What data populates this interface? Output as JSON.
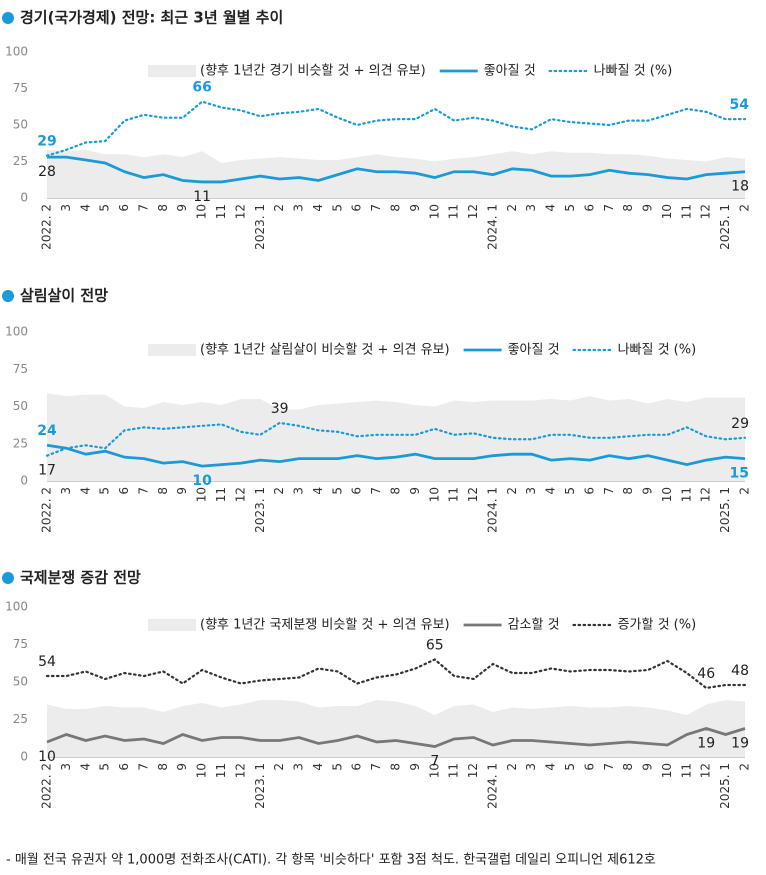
{
  "chart_data": [
    {
      "type": "line",
      "title": "경기(국가경제) 전망:  최근 3년 월별 추이",
      "categories": [
        "2022. 2",
        "3",
        "4",
        "5",
        "6",
        "7",
        "8",
        "9",
        "10",
        "11",
        "12",
        "2023. 1",
        "2",
        "3",
        "4",
        "5",
        "6",
        "7",
        "8",
        "9",
        "10",
        "11",
        "12",
        "2024. 1",
        "2",
        "3",
        "4",
        "5",
        "6",
        "7",
        "8",
        "9",
        "10",
        "11",
        "12",
        "2025. 1",
        "2"
      ],
      "ylim": [
        0,
        100
      ],
      "yticks": [
        0,
        25,
        50,
        75,
        100
      ],
      "series": [
        {
          "name": "(향후 1년간 경기 비슷할 것 + 의견 유보)",
          "color": "#ececec",
          "style": "area",
          "values": [
            33,
            32,
            33,
            30,
            30,
            28,
            30,
            28,
            32,
            24,
            26,
            27,
            28,
            27,
            26,
            26,
            28,
            30,
            28,
            27,
            25,
            27,
            28,
            30,
            32,
            30,
            32,
            31,
            31,
            30,
            30,
            29,
            27,
            26,
            25,
            28,
            27
          ]
        },
        {
          "name": "좋아질 것",
          "color": "#1a9ad6",
          "style": "solid",
          "label_color": "#222",
          "values": [
            28,
            28,
            26,
            24,
            18,
            14,
            16,
            12,
            11,
            11,
            13,
            15,
            13,
            14,
            12,
            16,
            20,
            18,
            18,
            17,
            14,
            18,
            18,
            16,
            20,
            19,
            15,
            15,
            16,
            19,
            17,
            16,
            14,
            13,
            16,
            17,
            18
          ],
          "value_labels": [
            "28",
            null,
            null,
            null,
            null,
            null,
            null,
            null,
            "11",
            null,
            null,
            null,
            null,
            null,
            null,
            null,
            null,
            null,
            null,
            null,
            null,
            null,
            null,
            null,
            null,
            null,
            null,
            null,
            null,
            null,
            null,
            null,
            null,
            null,
            null,
            null,
            "18"
          ]
        },
        {
          "name": "나빠질 것 (%)",
          "color": "#1a9ad6",
          "style": "dotted",
          "label_color": "#1a9ad6",
          "values": [
            29,
            33,
            38,
            39,
            53,
            57,
            55,
            55,
            66,
            62,
            60,
            56,
            58,
            59,
            61,
            55,
            50,
            53,
            54,
            54,
            61,
            53,
            55,
            53,
            49,
            47,
            54,
            52,
            51,
            50,
            53,
            53,
            57,
            61,
            59,
            54,
            54
          ],
          "value_labels": [
            "29",
            null,
            null,
            null,
            null,
            null,
            null,
            null,
            "66",
            null,
            null,
            null,
            null,
            null,
            null,
            null,
            null,
            null,
            null,
            null,
            null,
            null,
            null,
            null,
            null,
            null,
            null,
            null,
            null,
            null,
            null,
            null,
            null,
            null,
            null,
            null,
            "54"
          ]
        }
      ]
    },
    {
      "type": "line",
      "title": "살림살이 전망",
      "categories": [
        "2022. 2",
        "3",
        "4",
        "5",
        "6",
        "7",
        "8",
        "9",
        "10",
        "11",
        "12",
        "2023. 1",
        "2",
        "3",
        "4",
        "5",
        "6",
        "7",
        "8",
        "9",
        "10",
        "11",
        "12",
        "2024. 1",
        "2",
        "3",
        "4",
        "5",
        "6",
        "7",
        "8",
        "9",
        "10",
        "11",
        "12",
        "2025. 1",
        "2"
      ],
      "ylim": [
        0,
        100
      ],
      "yticks": [
        0,
        25,
        50,
        75,
        100
      ],
      "series": [
        {
          "name": "(향후 1년간 살림살이 비슷할 것 + 의견 유보)",
          "color": "#ececec",
          "style": "area",
          "values": [
            59,
            57,
            58,
            58,
            50,
            49,
            53,
            51,
            53,
            51,
            55,
            55,
            48,
            48,
            51,
            52,
            53,
            54,
            53,
            51,
            50,
            54,
            53,
            54,
            54,
            54,
            55,
            54,
            57,
            54,
            55,
            52,
            55,
            53,
            56,
            56,
            56
          ]
        },
        {
          "name": "좋아질 것",
          "color": "#1a9ad6",
          "style": "solid",
          "label_color": "#1a9ad6",
          "values": [
            24,
            22,
            18,
            20,
            16,
            15,
            12,
            13,
            10,
            11,
            12,
            14,
            13,
            15,
            15,
            15,
            17,
            15,
            16,
            18,
            15,
            15,
            15,
            17,
            18,
            18,
            14,
            15,
            14,
            17,
            15,
            17,
            14,
            11,
            14,
            16,
            15
          ],
          "value_labels": [
            "24",
            null,
            null,
            null,
            null,
            null,
            null,
            null,
            "10",
            null,
            null,
            null,
            null,
            null,
            null,
            null,
            null,
            null,
            null,
            null,
            null,
            null,
            null,
            null,
            null,
            null,
            null,
            null,
            null,
            null,
            null,
            null,
            null,
            null,
            null,
            null,
            "15"
          ]
        },
        {
          "name": "나빠질 것 (%)",
          "color": "#1a9ad6",
          "style": "dotted",
          "label_color": "#222",
          "values": [
            17,
            22,
            24,
            22,
            34,
            36,
            35,
            36,
            37,
            38,
            33,
            31,
            39,
            37,
            34,
            33,
            30,
            31,
            31,
            31,
            35,
            31,
            32,
            29,
            28,
            28,
            31,
            31,
            29,
            29,
            30,
            31,
            31,
            36,
            30,
            28,
            29
          ],
          "value_labels": [
            "17",
            null,
            null,
            null,
            null,
            null,
            null,
            null,
            null,
            null,
            null,
            null,
            "39",
            null,
            null,
            null,
            null,
            null,
            null,
            null,
            null,
            null,
            null,
            null,
            null,
            null,
            null,
            null,
            null,
            null,
            null,
            null,
            null,
            null,
            null,
            null,
            "29"
          ]
        }
      ]
    },
    {
      "type": "line",
      "title": "국제분쟁 증감 전망",
      "categories": [
        "2022. 2",
        "3",
        "4",
        "5",
        "6",
        "7",
        "8",
        "9",
        "10",
        "11",
        "12",
        "2023. 1",
        "2",
        "3",
        "4",
        "5",
        "6",
        "7",
        "8",
        "9",
        "10",
        "11",
        "12",
        "2024. 1",
        "2",
        "3",
        "4",
        "5",
        "6",
        "7",
        "8",
        "9",
        "10",
        "11",
        "12",
        "2025. 1",
        "2"
      ],
      "ylim": [
        0,
        100
      ],
      "yticks": [
        0,
        25,
        50,
        75,
        100
      ],
      "series": [
        {
          "name": "(향후 1년간 국제분쟁 비슷할 것 + 의견 유보)",
          "color": "#ececec",
          "style": "area",
          "values": [
            35,
            32,
            32,
            34,
            33,
            33,
            30,
            34,
            36,
            33,
            35,
            38,
            38,
            37,
            33,
            34,
            34,
            38,
            37,
            34,
            28,
            34,
            35,
            30,
            33,
            32,
            33,
            34,
            33,
            33,
            34,
            33,
            31,
            28,
            35,
            38,
            37
          ]
        },
        {
          "name": "감소할 것",
          "color": "#777777",
          "style": "solid",
          "label_color": "#222",
          "values": [
            10,
            15,
            11,
            14,
            11,
            12,
            9,
            15,
            11,
            13,
            13,
            11,
            11,
            13,
            9,
            11,
            14,
            10,
            11,
            9,
            7,
            12,
            13,
            8,
            11,
            11,
            10,
            9,
            8,
            9,
            10,
            9,
            8,
            15,
            19,
            15,
            19
          ],
          "value_labels": [
            "10",
            null,
            null,
            null,
            null,
            null,
            null,
            null,
            null,
            null,
            null,
            null,
            null,
            null,
            null,
            null,
            null,
            null,
            null,
            null,
            "7",
            null,
            null,
            null,
            null,
            null,
            null,
            null,
            null,
            null,
            null,
            null,
            null,
            null,
            "19",
            null,
            "19"
          ]
        },
        {
          "name": "증가할 것 (%)",
          "color": "#333333",
          "style": "dotted",
          "label_color": "#222",
          "values": [
            54,
            54,
            57,
            52,
            56,
            54,
            57,
            49,
            58,
            53,
            49,
            51,
            52,
            53,
            59,
            57,
            49,
            53,
            55,
            59,
            65,
            54,
            52,
            62,
            56,
            56,
            59,
            57,
            58,
            58,
            57,
            58,
            64,
            56,
            46,
            48,
            48
          ],
          "value_labels": [
            "54",
            null,
            null,
            null,
            null,
            null,
            null,
            null,
            null,
            null,
            null,
            null,
            null,
            null,
            null,
            null,
            null,
            null,
            null,
            null,
            "65",
            null,
            null,
            null,
            null,
            null,
            null,
            null,
            null,
            null,
            null,
            null,
            null,
            null,
            "46",
            null,
            "48"
          ]
        }
      ]
    }
  ],
  "footnote": "- 매월 전국 유권자 약 1,000명 전화조사(CATI). 각 항목 '비슷하다' 포함 3점 척도. 한국갤럽 데일리 오피니언 제612호"
}
